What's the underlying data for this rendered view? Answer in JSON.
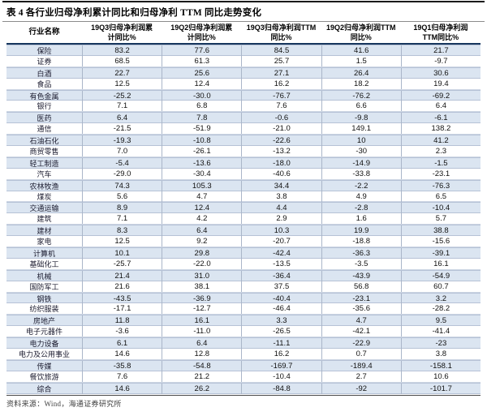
{
  "page": {
    "title": "表 4 各行业归母净利累计同比和归母净利 TTM 同比走势变化",
    "source": "资料来源：Wind，海通证券研究所"
  },
  "colors": {
    "band_blue": "#dbe5f1",
    "header_rule_navy": "#17375e",
    "top_rule_black": "#1a1a1a"
  },
  "table": {
    "columns": [
      "行业名称",
      "19Q3归母净利润累\n计同比%",
      "19Q2归母净利润累\n计同比%",
      "19Q3归母净利润TTM\n同比%",
      "19Q2归母净利润TTM\n同比%",
      "19Q1归母净利润\nTTM同比%"
    ],
    "rows": [
      {
        "name": "保险",
        "values": [
          "83.2",
          "77.6",
          "84.5",
          "41.6",
          "21.7"
        ]
      },
      {
        "name": "证券",
        "values": [
          "68.5",
          "61.3",
          "25.7",
          "1.5",
          "-9.7"
        ]
      },
      {
        "name": "白酒",
        "values": [
          "22.7",
          "25.6",
          "27.1",
          "26.4",
          "30.6"
        ]
      },
      {
        "name": "食品",
        "values": [
          "12.5",
          "12.4",
          "16.2",
          "18.2",
          "19.4"
        ]
      },
      {
        "name": "有色金属",
        "values": [
          "-25.2",
          "-30.0",
          "-76.7",
          "-76.2",
          "-69.2"
        ]
      },
      {
        "name": "银行",
        "values": [
          "7.1",
          "6.8",
          "7.6",
          "6.6",
          "6.4"
        ]
      },
      {
        "name": "医药",
        "values": [
          "6.4",
          "7.8",
          "-0.6",
          "-9.8",
          "-6.1"
        ]
      },
      {
        "name": "通信",
        "values": [
          "-21.5",
          "-51.9",
          "-21.0",
          "149.1",
          "138.2"
        ]
      },
      {
        "name": "石油石化",
        "values": [
          "-19.3",
          "-10.8",
          "-22.6",
          "10",
          "41.2"
        ]
      },
      {
        "name": "商贸零售",
        "values": [
          "7.0",
          "-26.1",
          "-13.2",
          "-30",
          "2.3"
        ]
      },
      {
        "name": "轻工制造",
        "values": [
          "-5.4",
          "-13.6",
          "-18.0",
          "-14.9",
          "-1.5"
        ]
      },
      {
        "name": "汽车",
        "values": [
          "-29.0",
          "-30.4",
          "-40.6",
          "-33.8",
          "-23.1"
        ]
      },
      {
        "name": "农林牧渔",
        "values": [
          "74.3",
          "105.3",
          "34.4",
          "-2.2",
          "-76.3"
        ]
      },
      {
        "name": "煤炭",
        "values": [
          "5.6",
          "4.7",
          "3.8",
          "4.9",
          "6.5"
        ]
      },
      {
        "name": "交通运输",
        "values": [
          "8.9",
          "12.4",
          "4.4",
          "-2.8",
          "-10.4"
        ]
      },
      {
        "name": "建筑",
        "values": [
          "7.1",
          "4.2",
          "2.9",
          "1.6",
          "5.7"
        ]
      },
      {
        "name": "建材",
        "values": [
          "8.3",
          "6.4",
          "10.3",
          "19.9",
          "38.8"
        ]
      },
      {
        "name": "家电",
        "values": [
          "12.5",
          "9.2",
          "-20.7",
          "-18.8",
          "-15.6"
        ]
      },
      {
        "name": "计算机",
        "values": [
          "10.1",
          "29.8",
          "-42.4",
          "-36.3",
          "-39.1"
        ]
      },
      {
        "name": "基础化工",
        "values": [
          "-25.7",
          "-22.0",
          "-13.5",
          "-3.5",
          "16.1"
        ]
      },
      {
        "name": "机械",
        "values": [
          "21.4",
          "31.0",
          "-36.4",
          "-43.9",
          "-54.9"
        ]
      },
      {
        "name": "国防军工",
        "values": [
          "21.6",
          "38.1",
          "37.5",
          "56.8",
          "60.7"
        ]
      },
      {
        "name": "钢铁",
        "values": [
          "-43.5",
          "-36.9",
          "-40.4",
          "-23.1",
          "3.2"
        ]
      },
      {
        "name": "纺织服装",
        "values": [
          "-17.1",
          "-12.7",
          "-46.4",
          "-35.6",
          "-28.2"
        ]
      },
      {
        "name": "房地产",
        "values": [
          "11.8",
          "16.1",
          "3.3",
          "4.7",
          "9.5"
        ]
      },
      {
        "name": "电子元器件",
        "values": [
          "-3.6",
          "-11.0",
          "-26.5",
          "-42.1",
          "-41.4"
        ]
      },
      {
        "name": "电力设备",
        "values": [
          "6.1",
          "6.4",
          "-11.1",
          "-22.9",
          "-23"
        ]
      },
      {
        "name": "电力及公用事业",
        "values": [
          "14.6",
          "12.8",
          "16.2",
          "0.7",
          "3.8"
        ]
      },
      {
        "name": "传媒",
        "values": [
          "-35.8",
          "-54.8",
          "-169.7",
          "-189.4",
          "-158.1"
        ]
      },
      {
        "name": "餐饮旅游",
        "values": [
          "7.6",
          "21.2",
          "-10.4",
          "2.7",
          "10.6"
        ]
      },
      {
        "name": "综合",
        "values": [
          "14.6",
          "26.2",
          "-84.8",
          "-92",
          "-101.7"
        ]
      }
    ]
  }
}
